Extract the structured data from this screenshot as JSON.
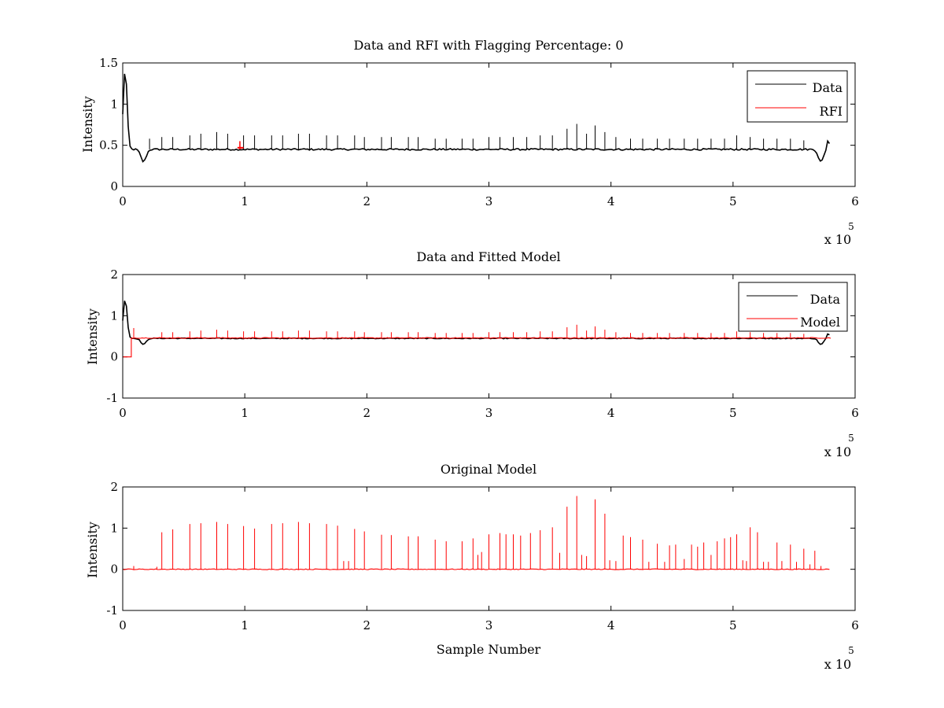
{
  "chart_data": [
    {
      "type": "line",
      "title": "Data and RFI with Flagging Percentage: 0",
      "xlabel": "",
      "ylabel": "Intensity",
      "xlim": [
        0,
        600000
      ],
      "ylim": [
        0,
        1.5
      ],
      "x_ticks": [
        "0",
        "1",
        "2",
        "3",
        "4",
        "5",
        "6"
      ],
      "y_ticks": [
        "0",
        "0.5",
        "1",
        "1.5"
      ],
      "x_exponent": {
        "base": "x 10",
        "power": "5"
      },
      "legend": {
        "position": "top-right"
      },
      "series": [
        {
          "name": "Data",
          "color": "#000000",
          "baseline": 0.45,
          "x_end": 580000,
          "features": [
            {
              "type": "peak",
              "x": 2000,
              "y": 1.42
            },
            {
              "type": "dip",
              "x": 17000,
              "y": 0.3
            },
            {
              "type": "dip",
              "x": 572000,
              "y": 0.3
            },
            {
              "type": "end_rise",
              "x": 578000,
              "y": 0.57
            }
          ],
          "spikes": [
            {
              "x": 22000,
              "y": 0.58
            },
            {
              "x": 32000,
              "y": 0.6
            },
            {
              "x": 41000,
              "y": 0.6
            },
            {
              "x": 55000,
              "y": 0.62
            },
            {
              "x": 64000,
              "y": 0.64
            },
            {
              "x": 77000,
              "y": 0.66
            },
            {
              "x": 86000,
              "y": 0.64
            },
            {
              "x": 99000,
              "y": 0.62
            },
            {
              "x": 108000,
              "y": 0.62
            },
            {
              "x": 122000,
              "y": 0.62
            },
            {
              "x": 131000,
              "y": 0.62
            },
            {
              "x": 144000,
              "y": 0.64
            },
            {
              "x": 153000,
              "y": 0.64
            },
            {
              "x": 167000,
              "y": 0.62
            },
            {
              "x": 176000,
              "y": 0.62
            },
            {
              "x": 190000,
              "y": 0.62
            },
            {
              "x": 198000,
              "y": 0.6
            },
            {
              "x": 212000,
              "y": 0.6
            },
            {
              "x": 220000,
              "y": 0.6
            },
            {
              "x": 234000,
              "y": 0.6
            },
            {
              "x": 242000,
              "y": 0.6
            },
            {
              "x": 256000,
              "y": 0.58
            },
            {
              "x": 265000,
              "y": 0.58
            },
            {
              "x": 278000,
              "y": 0.58
            },
            {
              "x": 287000,
              "y": 0.58
            },
            {
              "x": 300000,
              "y": 0.6
            },
            {
              "x": 309000,
              "y": 0.6
            },
            {
              "x": 320000,
              "y": 0.6
            },
            {
              "x": 331000,
              "y": 0.6
            },
            {
              "x": 342000,
              "y": 0.62
            },
            {
              "x": 352000,
              "y": 0.62
            },
            {
              "x": 364000,
              "y": 0.7
            },
            {
              "x": 372000,
              "y": 0.76
            },
            {
              "x": 380000,
              "y": 0.64
            },
            {
              "x": 387000,
              "y": 0.74
            },
            {
              "x": 395000,
              "y": 0.66
            },
            {
              "x": 404000,
              "y": 0.6
            },
            {
              "x": 416000,
              "y": 0.58
            },
            {
              "x": 426000,
              "y": 0.58
            },
            {
              "x": 438000,
              "y": 0.58
            },
            {
              "x": 448000,
              "y": 0.58
            },
            {
              "x": 460000,
              "y": 0.58
            },
            {
              "x": 471000,
              "y": 0.58
            },
            {
              "x": 482000,
              "y": 0.58
            },
            {
              "x": 493000,
              "y": 0.58
            },
            {
              "x": 503000,
              "y": 0.62
            },
            {
              "x": 514000,
              "y": 0.6
            },
            {
              "x": 525000,
              "y": 0.58
            },
            {
              "x": 536000,
              "y": 0.58
            },
            {
              "x": 547000,
              "y": 0.58
            },
            {
              "x": 558000,
              "y": 0.56
            }
          ]
        },
        {
          "name": "RFI",
          "color": "#ff0000",
          "segments": [
            {
              "x": 96000,
              "y": 0.55
            }
          ]
        }
      ]
    },
    {
      "type": "line",
      "title": "Data and Fitted Model",
      "xlabel": "",
      "ylabel": "Intensity",
      "xlim": [
        0,
        600000
      ],
      "ylim": [
        -1,
        2
      ],
      "x_ticks": [
        "0",
        "1",
        "2",
        "3",
        "4",
        "5",
        "6"
      ],
      "y_ticks": [
        "-1",
        "0",
        "1",
        "2"
      ],
      "x_exponent": {
        "base": "x 10",
        "power": "5"
      },
      "legend": {
        "position": "top-right"
      },
      "series": [
        {
          "name": "Data",
          "color": "#000000",
          "baseline": 0.45,
          "x_end": 580000,
          "features": [
            {
              "type": "peak",
              "x": 2000,
              "y": 1.42
            },
            {
              "type": "dip",
              "x": 17000,
              "y": 0.3
            },
            {
              "type": "dip",
              "x": 572000,
              "y": 0.3
            },
            {
              "type": "end_rise",
              "x": 578000,
              "y": 0.57
            }
          ]
        },
        {
          "name": "Model",
          "color": "#ff0000",
          "baseline": 0.46,
          "x_start": 7000,
          "x_end": 580000,
          "pre_value": 0.0,
          "spikes": [
            {
              "x": 9000,
              "y": 0.7
            },
            {
              "x": 32000,
              "y": 0.6
            },
            {
              "x": 41000,
              "y": 0.6
            },
            {
              "x": 55000,
              "y": 0.62
            },
            {
              "x": 64000,
              "y": 0.64
            },
            {
              "x": 77000,
              "y": 0.66
            },
            {
              "x": 86000,
              "y": 0.64
            },
            {
              "x": 99000,
              "y": 0.62
            },
            {
              "x": 108000,
              "y": 0.62
            },
            {
              "x": 122000,
              "y": 0.62
            },
            {
              "x": 131000,
              "y": 0.62
            },
            {
              "x": 144000,
              "y": 0.64
            },
            {
              "x": 153000,
              "y": 0.64
            },
            {
              "x": 167000,
              "y": 0.62
            },
            {
              "x": 176000,
              "y": 0.62
            },
            {
              "x": 190000,
              "y": 0.62
            },
            {
              "x": 198000,
              "y": 0.6
            },
            {
              "x": 212000,
              "y": 0.6
            },
            {
              "x": 220000,
              "y": 0.6
            },
            {
              "x": 234000,
              "y": 0.6
            },
            {
              "x": 242000,
              "y": 0.6
            },
            {
              "x": 256000,
              "y": 0.58
            },
            {
              "x": 265000,
              "y": 0.58
            },
            {
              "x": 278000,
              "y": 0.58
            },
            {
              "x": 287000,
              "y": 0.58
            },
            {
              "x": 300000,
              "y": 0.6
            },
            {
              "x": 309000,
              "y": 0.6
            },
            {
              "x": 320000,
              "y": 0.6
            },
            {
              "x": 331000,
              "y": 0.6
            },
            {
              "x": 342000,
              "y": 0.62
            },
            {
              "x": 352000,
              "y": 0.62
            },
            {
              "x": 364000,
              "y": 0.72
            },
            {
              "x": 372000,
              "y": 0.78
            },
            {
              "x": 380000,
              "y": 0.64
            },
            {
              "x": 387000,
              "y": 0.74
            },
            {
              "x": 395000,
              "y": 0.66
            },
            {
              "x": 404000,
              "y": 0.6
            },
            {
              "x": 416000,
              "y": 0.58
            },
            {
              "x": 426000,
              "y": 0.58
            },
            {
              "x": 438000,
              "y": 0.58
            },
            {
              "x": 448000,
              "y": 0.58
            },
            {
              "x": 460000,
              "y": 0.58
            },
            {
              "x": 471000,
              "y": 0.58
            },
            {
              "x": 482000,
              "y": 0.58
            },
            {
              "x": 493000,
              "y": 0.58
            },
            {
              "x": 503000,
              "y": 0.62
            },
            {
              "x": 514000,
              "y": 0.6
            },
            {
              "x": 525000,
              "y": 0.58
            },
            {
              "x": 536000,
              "y": 0.58
            },
            {
              "x": 547000,
              "y": 0.58
            },
            {
              "x": 558000,
              "y": 0.56
            }
          ]
        }
      ]
    },
    {
      "type": "line",
      "title": "Original Model",
      "xlabel": "Sample Number",
      "ylabel": "Intensity",
      "xlim": [
        0,
        600000
      ],
      "ylim": [
        -1,
        2
      ],
      "x_ticks": [
        "0",
        "1",
        "2",
        "3",
        "4",
        "5",
        "6"
      ],
      "y_ticks": [
        "-1",
        "0",
        "1",
        "2"
      ],
      "x_exponent": {
        "base": "x 10",
        "power": "5"
      },
      "legend": null,
      "series": [
        {
          "name": "",
          "color": "#ff0000",
          "baseline": 0.0,
          "x_end": 580000,
          "spikes": [
            {
              "x": 9000,
              "y": 0.08
            },
            {
              "x": 28000,
              "y": 0.06
            },
            {
              "x": 32000,
              "y": 0.9
            },
            {
              "x": 41000,
              "y": 0.97
            },
            {
              "x": 55000,
              "y": 1.1
            },
            {
              "x": 64000,
              "y": 1.12
            },
            {
              "x": 77000,
              "y": 1.15
            },
            {
              "x": 86000,
              "y": 1.1
            },
            {
              "x": 99000,
              "y": 1.05
            },
            {
              "x": 108000,
              "y": 0.99
            },
            {
              "x": 122000,
              "y": 1.1
            },
            {
              "x": 131000,
              "y": 1.12
            },
            {
              "x": 144000,
              "y": 1.15
            },
            {
              "x": 153000,
              "y": 1.12
            },
            {
              "x": 167000,
              "y": 1.1
            },
            {
              "x": 176000,
              "y": 1.06
            },
            {
              "x": 181000,
              "y": 0.2
            },
            {
              "x": 185000,
              "y": 0.2
            },
            {
              "x": 190000,
              "y": 0.98
            },
            {
              "x": 198000,
              "y": 0.92
            },
            {
              "x": 212000,
              "y": 0.84
            },
            {
              "x": 220000,
              "y": 0.83
            },
            {
              "x": 234000,
              "y": 0.8
            },
            {
              "x": 242000,
              "y": 0.8
            },
            {
              "x": 256000,
              "y": 0.72
            },
            {
              "x": 265000,
              "y": 0.68
            },
            {
              "x": 278000,
              "y": 0.68
            },
            {
              "x": 287000,
              "y": 0.75
            },
            {
              "x": 291000,
              "y": 0.35
            },
            {
              "x": 294000,
              "y": 0.42
            },
            {
              "x": 300000,
              "y": 0.85
            },
            {
              "x": 309000,
              "y": 0.88
            },
            {
              "x": 314000,
              "y": 0.85
            },
            {
              "x": 320000,
              "y": 0.85
            },
            {
              "x": 326000,
              "y": 0.82
            },
            {
              "x": 334000,
              "y": 0.88
            },
            {
              "x": 342000,
              "y": 0.95
            },
            {
              "x": 352000,
              "y": 1.02
            },
            {
              "x": 358000,
              "y": 0.4
            },
            {
              "x": 364000,
              "y": 1.52
            },
            {
              "x": 372000,
              "y": 1.78
            },
            {
              "x": 376000,
              "y": 0.35
            },
            {
              "x": 380000,
              "y": 0.32
            },
            {
              "x": 387000,
              "y": 1.7
            },
            {
              "x": 395000,
              "y": 1.35
            },
            {
              "x": 399000,
              "y": 0.22
            },
            {
              "x": 404000,
              "y": 0.2
            },
            {
              "x": 410000,
              "y": 0.82
            },
            {
              "x": 416000,
              "y": 0.78
            },
            {
              "x": 426000,
              "y": 0.72
            },
            {
              "x": 431000,
              "y": 0.18
            },
            {
              "x": 438000,
              "y": 0.62
            },
            {
              "x": 444000,
              "y": 0.18
            },
            {
              "x": 448000,
              "y": 0.58
            },
            {
              "x": 453000,
              "y": 0.6
            },
            {
              "x": 460000,
              "y": 0.25
            },
            {
              "x": 466000,
              "y": 0.6
            },
            {
              "x": 471000,
              "y": 0.55
            },
            {
              "x": 476000,
              "y": 0.65
            },
            {
              "x": 482000,
              "y": 0.35
            },
            {
              "x": 487000,
              "y": 0.68
            },
            {
              "x": 493000,
              "y": 0.75
            },
            {
              "x": 498000,
              "y": 0.78
            },
            {
              "x": 503000,
              "y": 0.85
            },
            {
              "x": 508000,
              "y": 0.22
            },
            {
              "x": 511000,
              "y": 0.2
            },
            {
              "x": 514000,
              "y": 1.02
            },
            {
              "x": 520000,
              "y": 0.9
            },
            {
              "x": 525000,
              "y": 0.18
            },
            {
              "x": 529000,
              "y": 0.18
            },
            {
              "x": 536000,
              "y": 0.65
            },
            {
              "x": 540000,
              "y": 0.2
            },
            {
              "x": 547000,
              "y": 0.6
            },
            {
              "x": 552000,
              "y": 0.18
            },
            {
              "x": 558000,
              "y": 0.5
            },
            {
              "x": 563000,
              "y": 0.12
            },
            {
              "x": 567000,
              "y": 0.45
            },
            {
              "x": 572000,
              "y": 0.08
            }
          ]
        }
      ]
    }
  ]
}
